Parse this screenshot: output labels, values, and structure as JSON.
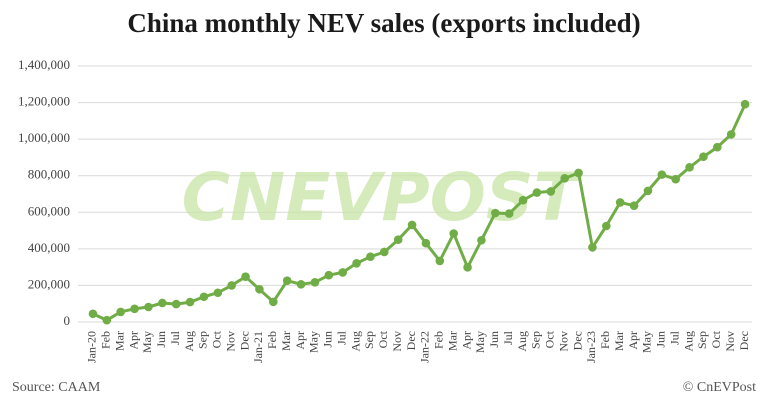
{
  "chart_data": {
    "type": "line",
    "title": "China monthly NEV sales (exports included)",
    "watermark": "CNEVPOST",
    "source": "Source: CAAM",
    "credit": "© CnEVPost",
    "categories": [
      "Jan-20",
      "Feb",
      "Mar",
      "Apr",
      "May",
      "Jun",
      "Jul",
      "Aug",
      "Sep",
      "Oct",
      "Nov",
      "Dec",
      "Jan-21",
      "Feb",
      "Mar",
      "Apr",
      "May",
      "Jun",
      "Jul",
      "Aug",
      "Sep",
      "Oct",
      "Nov",
      "Dec",
      "Jan-22",
      "Feb",
      "Mar",
      "Apr",
      "May",
      "Jun",
      "Jul",
      "Aug",
      "Sep",
      "Oct",
      "Nov",
      "Dec",
      "Jan-23",
      "Feb",
      "Mar",
      "Apr",
      "May",
      "Jun",
      "Jul",
      "Aug",
      "Sep",
      "Oct",
      "Nov",
      "Dec"
    ],
    "values": [
      45000,
      10000,
      55000,
      72000,
      82000,
      104000,
      98000,
      109000,
      138000,
      160000,
      200000,
      248000,
      179000,
      110000,
      226000,
      206000,
      217000,
      256000,
      271000,
      321000,
      357000,
      383000,
      450000,
      531000,
      431000,
      334000,
      484000,
      299000,
      447000,
      596000,
      593000,
      666000,
      708000,
      714000,
      786000,
      815000,
      408000,
      525000,
      654000,
      636000,
      717000,
      806000,
      781000,
      846000,
      904000,
      956000,
      1026000,
      1191000
    ],
    "color": "#70ad47",
    "ylim": [
      0,
      1400000
    ],
    "yticks": [
      0,
      {
        "value": 200000,
        "label": "200,000"
      },
      {
        "value": 400000,
        "label": "400,000"
      },
      {
        "value": 600000,
        "label": "600,000"
      },
      {
        "value": 800000,
        "label": "800,000"
      },
      {
        "value": 1000000,
        "label": "1,000,000"
      },
      {
        "value": 1200000,
        "label": "1,200,000"
      },
      {
        "value": 1400000,
        "label": "1,400,000"
      }
    ],
    "grid": true
  }
}
